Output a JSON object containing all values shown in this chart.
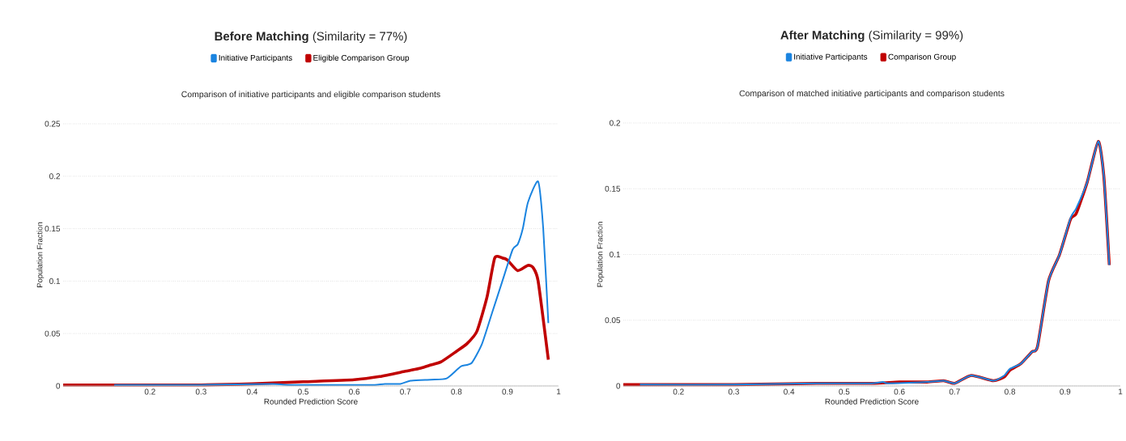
{
  "chart_data": [
    {
      "type": "line",
      "title": "**Before Matching** (Similarity = 77%)",
      "subtitle": "Comparison of initiative participants and eligible comparison students",
      "xlabel": "Rounded Prediction Score",
      "ylabel": "Population Fraction",
      "legend": "top",
      "grid": "y",
      "xlim": [
        0.03,
        1
      ],
      "ylim": [
        0,
        0.25
      ],
      "xticks": [
        0.2,
        0.3,
        0.4,
        0.5,
        0.6,
        0.7,
        0.8,
        0.9,
        1
      ],
      "yticks": [
        0,
        0.05,
        0.1,
        0.15,
        0.2,
        0.25
      ],
      "series": [
        {
          "name": "Initiative Participants",
          "color": "#1a84e0",
          "x": [
            0.13,
            0.3,
            0.44,
            0.47,
            0.6,
            0.64,
            0.66,
            0.69,
            0.71,
            0.75,
            0.78,
            0.8,
            0.81,
            0.83,
            0.85,
            0.87,
            0.89,
            0.91,
            0.92,
            0.93,
            0.94,
            0.96,
            0.97,
            0.98
          ],
          "values": [
            0.001,
            0.001,
            0.002,
            0.001,
            0.001,
            0.001,
            0.002,
            0.002,
            0.005,
            0.006,
            0.007,
            0.015,
            0.019,
            0.022,
            0.04,
            0.07,
            0.1,
            0.13,
            0.135,
            0.15,
            0.175,
            0.195,
            0.15,
            0.06
          ]
        },
        {
          "name": "Eligible Comparison Group",
          "color": "#c00000",
          "x": [
            0.03,
            0.3,
            0.4,
            0.5,
            0.6,
            0.65,
            0.7,
            0.73,
            0.75,
            0.77,
            0.8,
            0.82,
            0.84,
            0.86,
            0.875,
            0.89,
            0.9,
            0.92,
            0.94,
            0.95,
            0.96,
            0.98
          ],
          "values": [
            0.001,
            0.001,
            0.002,
            0.004,
            0.006,
            0.009,
            0.014,
            0.017,
            0.02,
            0.023,
            0.033,
            0.04,
            0.052,
            0.085,
            0.122,
            0.122,
            0.12,
            0.11,
            0.115,
            0.113,
            0.1,
            0.025
          ]
        }
      ]
    },
    {
      "type": "line",
      "title": "**After Matching** (Similarity = 99%)",
      "subtitle": "Comparison of matched initiative participants and comparison students",
      "xlabel": "Rounded Prediction Score",
      "ylabel": "Population Fraction",
      "legend": "top",
      "grid": "y",
      "xlim": [
        0.1,
        1
      ],
      "ylim": [
        0,
        0.2
      ],
      "xticks": [
        0.2,
        0.3,
        0.4,
        0.5,
        0.6,
        0.7,
        0.8,
        0.9,
        1
      ],
      "yticks": [
        0,
        0.05,
        0.1,
        0.15,
        0.2
      ],
      "series": [
        {
          "name": "Initiative Participants",
          "color": "#1a84e0",
          "x": [
            0.13,
            0.3,
            0.45,
            0.55,
            0.57,
            0.58,
            0.65,
            0.68,
            0.7,
            0.73,
            0.77,
            0.79,
            0.8,
            0.82,
            0.84,
            0.85,
            0.87,
            0.89,
            0.91,
            0.92,
            0.94,
            0.96,
            0.97,
            0.98
          ],
          "values": [
            0.001,
            0.001,
            0.002,
            0.002,
            0.003,
            0.002,
            0.003,
            0.004,
            0.002,
            0.008,
            0.004,
            0.008,
            0.013,
            0.017,
            0.026,
            0.03,
            0.08,
            0.1,
            0.128,
            0.135,
            0.155,
            0.186,
            0.16,
            0.092
          ]
        },
        {
          "name": "Comparison Group",
          "color": "#c00000",
          "x": [
            0.1,
            0.13,
            0.3,
            0.45,
            0.55,
            0.6,
            0.65,
            0.68,
            0.7,
            0.73,
            0.77,
            0.79,
            0.8,
            0.82,
            0.84,
            0.85,
            0.87,
            0.89,
            0.91,
            0.92,
            0.94,
            0.96,
            0.97,
            0.98
          ],
          "values": [
            0.001,
            0.001,
            0.001,
            0.002,
            0.002,
            0.003,
            0.003,
            0.004,
            0.002,
            0.008,
            0.004,
            0.007,
            0.012,
            0.017,
            0.026,
            0.03,
            0.08,
            0.1,
            0.127,
            0.131,
            0.155,
            0.186,
            0.16,
            0.092
          ]
        }
      ]
    }
  ]
}
